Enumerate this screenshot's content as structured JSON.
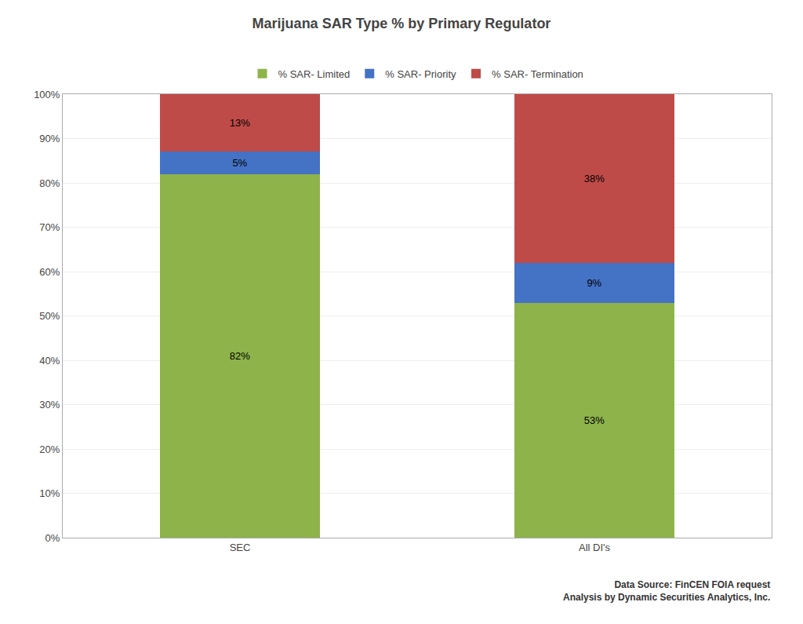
{
  "chart_data": {
    "type": "bar",
    "stacked": true,
    "title": "Marijuana SAR Type % by Primary Regulator",
    "categories": [
      "SEC",
      "All DI's"
    ],
    "series": [
      {
        "name": "% SAR- Limited",
        "color": "#8DB34A",
        "values": [
          82,
          53
        ],
        "value_labels": [
          "82%",
          "53%"
        ]
      },
      {
        "name": "% SAR- Priority",
        "color": "#4472C4",
        "values": [
          5,
          9
        ],
        "value_labels": [
          "5%",
          "9%"
        ]
      },
      {
        "name": "% SAR- Termination",
        "color": "#BE4B48",
        "values": [
          13,
          38
        ],
        "value_labels": [
          "13%",
          "38%"
        ]
      }
    ],
    "data_labels": true,
    "ylim": [
      0,
      100
    ],
    "yticks": [
      {
        "value": 0,
        "label": "0%"
      },
      {
        "value": 10,
        "label": "10%"
      },
      {
        "value": 20,
        "label": "20%"
      },
      {
        "value": 30,
        "label": "30%"
      },
      {
        "value": 40,
        "label": "40%"
      },
      {
        "value": 50,
        "label": "50%"
      },
      {
        "value": 60,
        "label": "60%"
      },
      {
        "value": 70,
        "label": "70%"
      },
      {
        "value": 80,
        "label": "80%"
      },
      {
        "value": 90,
        "label": "90%"
      },
      {
        "value": 100,
        "label": "100%"
      }
    ],
    "grid": true,
    "legend": "top",
    "annotations": [
      "Data Source: FinCEN FOIA request",
      "Analysis by Dynamic Securities Analytics, Inc."
    ]
  }
}
